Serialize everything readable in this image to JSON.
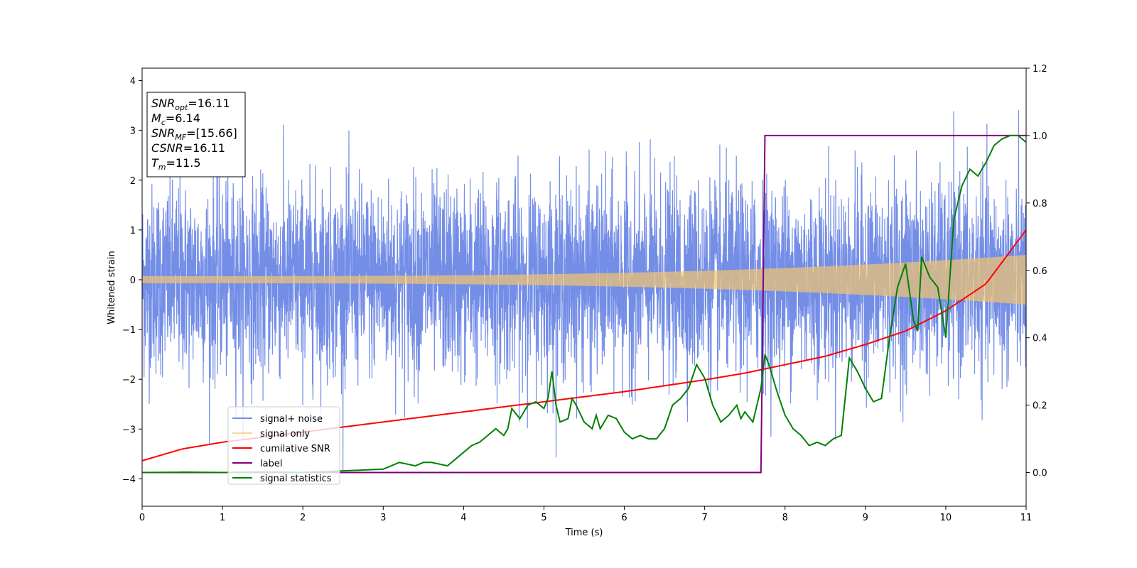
{
  "chart_data": {
    "type": "line",
    "xlabel": "Time (s)",
    "ylabel": "Whitened strain",
    "xlim": [
      0,
      11
    ],
    "ylim": [
      -4.55,
      4.25
    ],
    "y2lim": [
      -0.1,
      1.2
    ],
    "x_ticks": [
      "0",
      "1",
      "2",
      "3",
      "4",
      "5",
      "6",
      "7",
      "8",
      "9",
      "10",
      "11"
    ],
    "y_ticks": [
      "−4",
      "−3",
      "−2",
      "−1",
      "0",
      "1",
      "2",
      "3",
      "4"
    ],
    "y2_ticks": [
      "0.0",
      "0.2",
      "0.4",
      "0.6",
      "0.8",
      "1.0",
      "1.2"
    ],
    "legend_position": "lower-left",
    "info_box": {
      "lines": [
        {
          "main": "SNR",
          "sub": "opt",
          "value": "=16.11"
        },
        {
          "main": "M",
          "sub": "c",
          "value": "=6.14"
        },
        {
          "main": "SNR",
          "sub": "MF",
          "value": "=[15.66]"
        },
        {
          "main": "CSNR",
          "sub": "",
          "value": "=16.11"
        },
        {
          "main": "T",
          "sub": "m",
          "value": "=11.5"
        }
      ]
    },
    "series": [
      {
        "name": "signal+ noise",
        "axis": "left",
        "color": "#6d88e6",
        "kind": "noise",
        "description_values": {
          "typical_range": [
            -2.0,
            2.2
          ],
          "max": 3.85,
          "min": -4.15
        }
      },
      {
        "name": "signal only",
        "axis": "left",
        "color": "#f3c56f",
        "kind": "chirp",
        "amplitude_start": 0.07,
        "amplitude_end": 0.5
      },
      {
        "name": "cumilative SNR",
        "axis": "right",
        "color": "#ff0000",
        "x": [
          0,
          0.5,
          1,
          2,
          3,
          4,
          5,
          6,
          7,
          7.5,
          8,
          8.5,
          9,
          9.5,
          10,
          10.5,
          11
        ],
        "values": [
          0.035,
          0.07,
          0.09,
          0.12,
          0.15,
          0.18,
          0.21,
          0.24,
          0.275,
          0.295,
          0.32,
          0.345,
          0.38,
          0.42,
          0.48,
          0.56,
          0.72
        ]
      },
      {
        "name": "label",
        "axis": "right",
        "color": "#800080",
        "x": [
          0,
          7.7,
          7.75,
          11
        ],
        "values": [
          0.0,
          0.0,
          1.0,
          1.0
        ]
      },
      {
        "name": "signal statistics",
        "axis": "right",
        "color": "#008000",
        "x": [
          0,
          0.5,
          1,
          1.5,
          2,
          2.5,
          3,
          3.2,
          3.4,
          3.5,
          3.6,
          3.8,
          4.0,
          4.1,
          4.2,
          4.3,
          4.4,
          4.5,
          4.55,
          4.6,
          4.7,
          4.8,
          4.9,
          5.0,
          5.05,
          5.1,
          5.15,
          5.2,
          5.3,
          5.35,
          5.4,
          5.5,
          5.6,
          5.65,
          5.7,
          5.8,
          5.9,
          6.0,
          6.1,
          6.2,
          6.3,
          6.4,
          6.5,
          6.6,
          6.7,
          6.8,
          6.9,
          6.95,
          7.0,
          7.1,
          7.2,
          7.3,
          7.4,
          7.45,
          7.5,
          7.6,
          7.7,
          7.75,
          7.8,
          7.9,
          8.0,
          8.1,
          8.2,
          8.3,
          8.4,
          8.5,
          8.6,
          8.7,
          8.8,
          8.9,
          9.0,
          9.1,
          9.2,
          9.3,
          9.4,
          9.5,
          9.6,
          9.65,
          9.7,
          9.8,
          9.9,
          10.0,
          10.1,
          10.2,
          10.3,
          10.4,
          10.5,
          10.6,
          10.7,
          10.8,
          10.9,
          11.0
        ],
        "values": [
          0.0,
          0.001,
          0.0,
          0.002,
          0.0,
          0.005,
          0.01,
          0.03,
          0.02,
          0.03,
          0.03,
          0.02,
          0.06,
          0.08,
          0.09,
          0.11,
          0.13,
          0.11,
          0.13,
          0.19,
          0.16,
          0.2,
          0.21,
          0.19,
          0.22,
          0.3,
          0.2,
          0.15,
          0.16,
          0.22,
          0.2,
          0.15,
          0.13,
          0.17,
          0.13,
          0.17,
          0.16,
          0.12,
          0.1,
          0.11,
          0.1,
          0.1,
          0.13,
          0.2,
          0.22,
          0.25,
          0.32,
          0.3,
          0.28,
          0.2,
          0.15,
          0.17,
          0.2,
          0.16,
          0.18,
          0.15,
          0.25,
          0.35,
          0.32,
          0.24,
          0.17,
          0.13,
          0.11,
          0.08,
          0.09,
          0.08,
          0.1,
          0.11,
          0.34,
          0.3,
          0.25,
          0.21,
          0.22,
          0.4,
          0.55,
          0.62,
          0.45,
          0.42,
          0.64,
          0.58,
          0.55,
          0.4,
          0.75,
          0.85,
          0.9,
          0.88,
          0.92,
          0.97,
          0.99,
          1.0,
          1.0,
          0.98
        ]
      }
    ]
  }
}
